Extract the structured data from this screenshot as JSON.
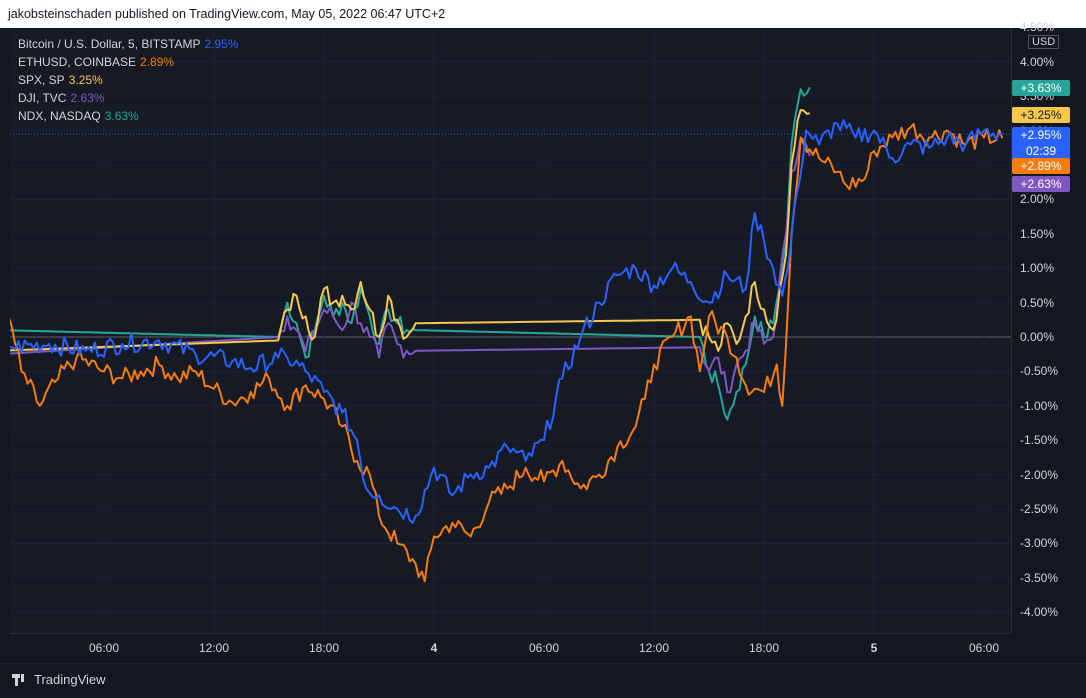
{
  "header": {
    "publisher": "jakobsteinschaden published on TradingView.com, May 05, 2022 06:47 UTC+2"
  },
  "footer": {
    "brand": "TradingView"
  },
  "chart_data": {
    "type": "line",
    "unit": "USD",
    "y_axis": {
      "min": -4.0,
      "max": 4.5,
      "ticks": [
        "4.50%",
        "4.00%",
        "3.50%",
        "3.00%",
        "2.50%",
        "2.00%",
        "1.50%",
        "1.00%",
        "0.50%",
        "0.00%",
        "-0.50%",
        "-1.00%",
        "-1.50%",
        "-2.00%",
        "-2.50%",
        "-3.00%",
        "-3.50%",
        "-4.00%"
      ]
    },
    "x_axis": {
      "ticks": [
        {
          "label": "06:00",
          "hour": 6,
          "bold": false
        },
        {
          "label": "12:00",
          "hour": 12,
          "bold": false
        },
        {
          "label": "18:00",
          "hour": 18,
          "bold": false
        },
        {
          "label": "4",
          "hour": 24,
          "bold": true
        },
        {
          "label": "06:00",
          "hour": 30,
          "bold": false
        },
        {
          "label": "12:00",
          "hour": 36,
          "bold": false
        },
        {
          "label": "18:00",
          "hour": 42,
          "bold": false
        },
        {
          "label": "5",
          "hour": 48,
          "bold": true
        },
        {
          "label": "06:00",
          "hour": 54,
          "bold": false
        }
      ],
      "range_hours": [
        0.3,
        55.1
      ]
    },
    "grid": true,
    "countdown": "02:39",
    "series": [
      {
        "name": "Bitcoin / U.S. Dollar, 5, BITSTAMP",
        "last": "2.95%",
        "tag": "+2.95%",
        "color": "#2962ff",
        "points": [
          [
            0.3,
            -0.05
          ],
          [
            1,
            -0.15
          ],
          [
            3,
            -0.1
          ],
          [
            5,
            -0.2
          ],
          [
            7,
            -0.1
          ],
          [
            9,
            -0.05
          ],
          [
            11,
            -0.25
          ],
          [
            13,
            -0.35
          ],
          [
            14,
            -0.45
          ],
          [
            15.5,
            -0.3
          ],
          [
            16,
            -0.3
          ],
          [
            17,
            -0.5
          ],
          [
            18,
            -0.8
          ],
          [
            19,
            -1.1
          ],
          [
            19.8,
            -1.5
          ],
          [
            20.3,
            -2.2
          ],
          [
            21,
            -2.3
          ],
          [
            22,
            -2.5
          ],
          [
            23,
            -2.6
          ],
          [
            24,
            -1.9
          ],
          [
            25,
            -2.3
          ],
          [
            26,
            -2.0
          ],
          [
            27,
            -1.9
          ],
          [
            28,
            -1.6
          ],
          [
            29,
            -1.8
          ],
          [
            30,
            -1.5
          ],
          [
            31,
            -0.6
          ],
          [
            32,
            0.0
          ],
          [
            33,
            0.5
          ],
          [
            34,
            0.9
          ],
          [
            35,
            1.0
          ],
          [
            36,
            0.75
          ],
          [
            37,
            1.0
          ],
          [
            38,
            0.8
          ],
          [
            39,
            0.5
          ],
          [
            40,
            0.9
          ],
          [
            41,
            0.7
          ],
          [
            41.5,
            1.8
          ],
          [
            42,
            1.4
          ],
          [
            42.5,
            1.0
          ],
          [
            43,
            0.6
          ],
          [
            43.3,
            1.0
          ],
          [
            43.8,
            2.1
          ],
          [
            44.3,
            3.0
          ],
          [
            45,
            2.8
          ],
          [
            46,
            3.1
          ],
          [
            47,
            2.9
          ],
          [
            48,
            3.0
          ],
          [
            49,
            2.6
          ],
          [
            50,
            2.8
          ],
          [
            51,
            2.75
          ],
          [
            52,
            2.9
          ],
          [
            53,
            2.8
          ],
          [
            54,
            3.0
          ],
          [
            55,
            2.95
          ]
        ]
      },
      {
        "name": "ETHUSD, COINBASE",
        "last": "2.89%",
        "tag": "+2.89%",
        "color": "#f57c11",
        "points": [
          [
            0.3,
            0.15
          ],
          [
            0.8,
            0.3
          ],
          [
            1.5,
            -0.5
          ],
          [
            2.5,
            -1.0
          ],
          [
            3.5,
            -0.6
          ],
          [
            4.5,
            -0.3
          ],
          [
            6,
            -0.5
          ],
          [
            7,
            -0.6
          ],
          [
            8,
            -0.5
          ],
          [
            9,
            -0.4
          ],
          [
            10,
            -0.6
          ],
          [
            11,
            -0.5
          ],
          [
            12,
            -0.75
          ],
          [
            13,
            -0.95
          ],
          [
            14,
            -0.8
          ],
          [
            15,
            -0.6
          ],
          [
            16,
            -1.0
          ],
          [
            17,
            -0.7
          ],
          [
            18,
            -0.9
          ],
          [
            19,
            -1.3
          ],
          [
            19.8,
            -1.8
          ],
          [
            20.5,
            -2.0
          ],
          [
            21,
            -2.6
          ],
          [
            22,
            -3.0
          ],
          [
            23,
            -3.3
          ],
          [
            23.5,
            -3.55
          ],
          [
            24,
            -2.9
          ],
          [
            25,
            -2.7
          ],
          [
            26,
            -2.9
          ],
          [
            27,
            -2.4
          ],
          [
            28,
            -2.2
          ],
          [
            29,
            -1.9
          ],
          [
            30,
            -2.1
          ],
          [
            31,
            -1.8
          ],
          [
            32,
            -2.2
          ],
          [
            33,
            -2.0
          ],
          [
            34,
            -1.6
          ],
          [
            35,
            -1.3
          ],
          [
            35.5,
            -0.9
          ],
          [
            36,
            -0.4
          ],
          [
            37,
            0.0
          ],
          [
            38,
            0.3
          ],
          [
            38.5,
            -0.5
          ],
          [
            39,
            0.3
          ],
          [
            40,
            0.0
          ],
          [
            40.5,
            -0.3
          ],
          [
            41,
            -0.7
          ],
          [
            42,
            -0.8
          ],
          [
            42.7,
            -0.4
          ],
          [
            43,
            -1.0
          ],
          [
            43.5,
            1.5
          ],
          [
            44,
            2.9
          ],
          [
            45,
            2.6
          ],
          [
            46,
            2.4
          ],
          [
            46.5,
            2.2
          ],
          [
            47.5,
            2.3
          ],
          [
            48,
            2.7
          ],
          [
            49,
            2.9
          ],
          [
            50,
            3.05
          ],
          [
            51,
            2.9
          ],
          [
            52,
            3.0
          ],
          [
            53,
            2.8
          ],
          [
            54,
            2.9
          ],
          [
            55,
            2.89
          ]
        ]
      },
      {
        "name": "SPX, SP",
        "last": "3.25%",
        "tag": "+3.25%",
        "color": "#f7c84b",
        "points": [
          [
            0.3,
            -0.2
          ],
          [
            15.5,
            -0.05
          ],
          [
            16,
            0.4
          ],
          [
            16.5,
            0.6
          ],
          [
            17,
            0.3
          ],
          [
            17.5,
            0.0
          ],
          [
            18,
            0.7
          ],
          [
            18.5,
            0.5
          ],
          [
            19,
            0.6
          ],
          [
            19.5,
            0.4
          ],
          [
            20,
            0.8
          ],
          [
            20.5,
            0.4
          ],
          [
            21,
            0.0
          ],
          [
            21.5,
            0.6
          ],
          [
            22,
            0.25
          ],
          [
            22.5,
            0.0
          ],
          [
            23,
            0.2
          ],
          [
            38.5,
            0.25
          ],
          [
            39,
            0.0
          ],
          [
            39.5,
            -0.2
          ],
          [
            40,
            0.2
          ],
          [
            40.5,
            -0.1
          ],
          [
            41,
            0.3
          ],
          [
            41.5,
            0.8
          ],
          [
            42,
            0.4
          ],
          [
            42.5,
            0.1
          ],
          [
            43.2,
            1.2
          ],
          [
            43.5,
            2.5
          ],
          [
            44,
            3.3
          ],
          [
            44.5,
            3.25
          ]
        ]
      },
      {
        "name": "DJI, TVC",
        "last": "2.63%",
        "tag": "+2.63%",
        "color": "#7e57c2",
        "points": [
          [
            0.3,
            -0.25
          ],
          [
            15.5,
            0.0
          ],
          [
            16,
            0.3
          ],
          [
            16.5,
            0.1
          ],
          [
            17,
            -0.2
          ],
          [
            17.5,
            0.1
          ],
          [
            18,
            0.4
          ],
          [
            18.5,
            0.3
          ],
          [
            19,
            0.1
          ],
          [
            19.5,
            0.5
          ],
          [
            20,
            0.2
          ],
          [
            20.5,
            0.0
          ],
          [
            21,
            -0.3
          ],
          [
            21.5,
            0.2
          ],
          [
            22,
            -0.1
          ],
          [
            22.5,
            -0.2
          ],
          [
            23,
            -0.2
          ],
          [
            38.5,
            -0.15
          ],
          [
            39,
            -0.5
          ],
          [
            39.5,
            -0.3
          ],
          [
            40,
            -0.8
          ],
          [
            40.5,
            -0.4
          ],
          [
            41,
            -0.2
          ],
          [
            41.5,
            0.2
          ],
          [
            42,
            -0.1
          ],
          [
            42.5,
            0.0
          ],
          [
            43.2,
            1.5
          ],
          [
            43.5,
            2.4
          ],
          [
            44,
            2.9
          ],
          [
            44.5,
            2.63
          ]
        ]
      },
      {
        "name": "NDX, NASDAQ",
        "last": "3.63%",
        "tag": "+3.63%",
        "color": "#26a69a",
        "points": [
          [
            0.3,
            0.1
          ],
          [
            15.5,
            0.0
          ],
          [
            16,
            0.5
          ],
          [
            16.5,
            0.2
          ],
          [
            17,
            -0.3
          ],
          [
            17.5,
            0.1
          ],
          [
            18,
            0.6
          ],
          [
            18.5,
            0.3
          ],
          [
            19,
            0.5
          ],
          [
            19.5,
            0.2
          ],
          [
            20,
            0.7
          ],
          [
            20.5,
            0.3
          ],
          [
            21,
            -0.1
          ],
          [
            21.5,
            0.4
          ],
          [
            22,
            0.2
          ],
          [
            22.5,
            0.1
          ],
          [
            23,
            0.1
          ],
          [
            38.5,
            0.0
          ],
          [
            39,
            -0.5
          ],
          [
            39.5,
            -0.7
          ],
          [
            40,
            -1.2
          ],
          [
            40.5,
            -0.8
          ],
          [
            41,
            -0.4
          ],
          [
            41.5,
            0.3
          ],
          [
            42,
            0.0
          ],
          [
            42.5,
            0.2
          ],
          [
            43.2,
            1.4
          ],
          [
            43.5,
            2.8
          ],
          [
            44,
            3.6
          ],
          [
            44.5,
            3.63
          ]
        ]
      }
    ]
  }
}
